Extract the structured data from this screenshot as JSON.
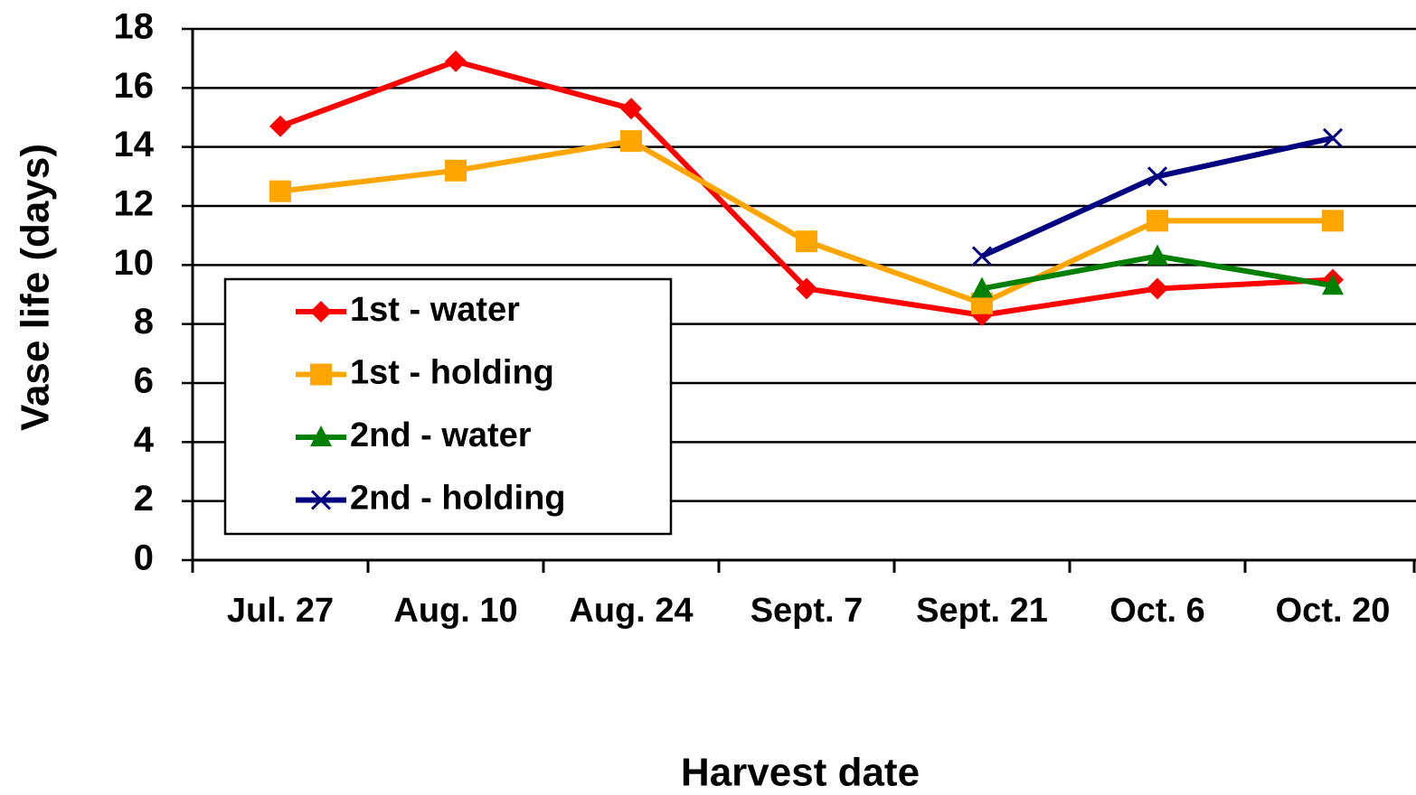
{
  "chart_data": {
    "type": "line",
    "x_label": "Harvest date",
    "y_label": "Vase life (days)",
    "categories": [
      "Jul. 27",
      "Aug. 10",
      "Aug. 24",
      "Sept. 7",
      "Sept. 21",
      "Oct. 6",
      "Oct. 20"
    ],
    "series": [
      {
        "name": "1st - water",
        "color": "#ff0000",
        "marker": "diamond",
        "values": [
          14.7,
          16.9,
          15.3,
          9.2,
          8.3,
          9.2,
          9.5
        ]
      },
      {
        "name": "1st - holding",
        "color": "#ffa500",
        "marker": "square",
        "values": [
          12.5,
          13.2,
          14.2,
          10.8,
          8.7,
          11.5,
          11.5
        ]
      },
      {
        "name": "2nd - water",
        "color": "#008000",
        "marker": "triangle",
        "values": [
          null,
          null,
          null,
          null,
          9.2,
          10.3,
          9.3
        ]
      },
      {
        "name": "2nd - holding",
        "color": "#000080",
        "marker": "x",
        "values": [
          null,
          null,
          null,
          null,
          10.3,
          13.0,
          14.3
        ]
      }
    ],
    "ylim": [
      0,
      18
    ],
    "yticks": [
      0,
      2,
      4,
      6,
      8,
      10,
      12,
      14,
      16,
      18
    ],
    "grid": true,
    "legend": "left"
  }
}
